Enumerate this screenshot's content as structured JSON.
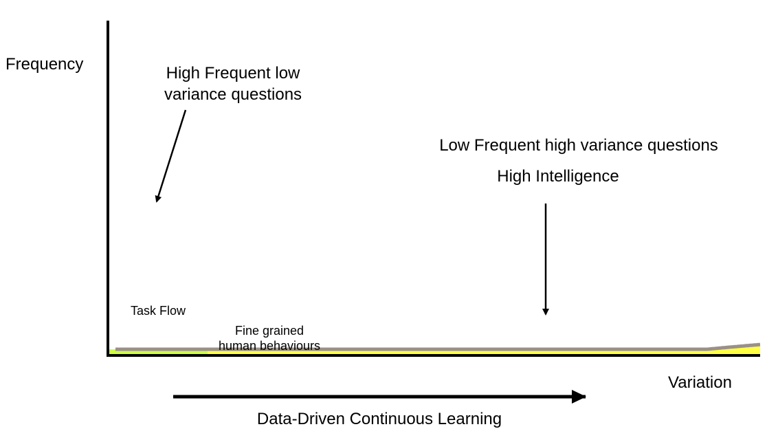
{
  "labels": {
    "y_axis": "Frequency",
    "x_axis": "Variation",
    "head_line1": "High Frequent low",
    "head_line2": "variance questions",
    "tail_title": "Low Frequent high variance questions",
    "tail_subtitle": "High Intelligence",
    "region_head": "Task Flow",
    "region_tail_line1": "Fine grained",
    "region_tail_line2": "human behaviours",
    "bottom_arrow": "Data-Driven Continuous Learning"
  },
  "colors": {
    "head_fill": "#ccff44",
    "tail_fill": "#ffff44",
    "curve": "#9a9088",
    "subtitle": "#9a9088",
    "axis": "#000000"
  }
}
